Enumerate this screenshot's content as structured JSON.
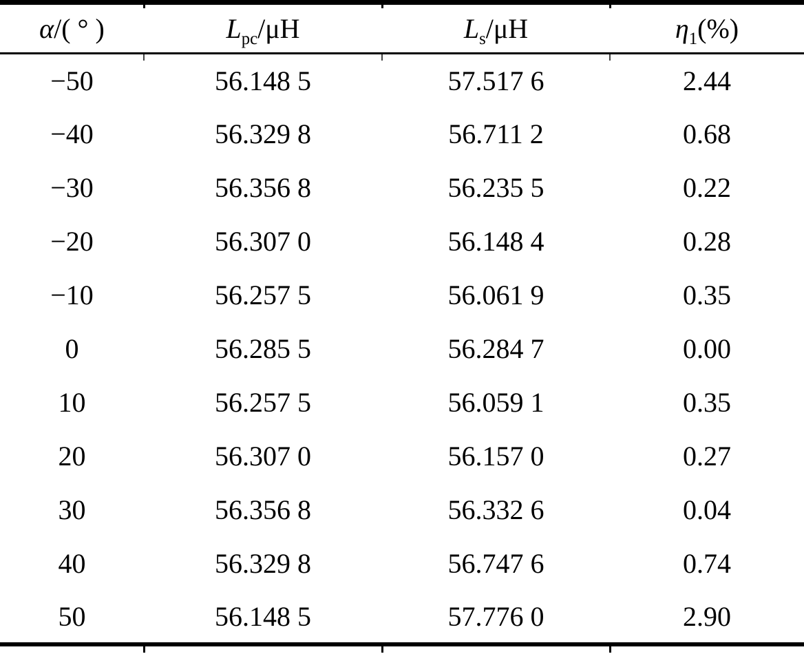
{
  "table": {
    "headers": [
      {
        "italic": "α",
        "sub": "",
        "rest": "/( ° )"
      },
      {
        "italic": "L",
        "sub": "pc",
        "rest": "/μH"
      },
      {
        "italic": "L",
        "sub": "s",
        "rest": "/μH"
      },
      {
        "italic": "η",
        "sub": "1",
        "rest": "(%)"
      }
    ],
    "rows": [
      [
        "−50",
        "56.148 5",
        "57.517 6",
        "2.44"
      ],
      [
        "−40",
        "56.329 8",
        "56.711 2",
        "0.68"
      ],
      [
        "−30",
        "56.356 8",
        "56.235 5",
        "0.22"
      ],
      [
        "−20",
        "56.307 0",
        "56.148 4",
        "0.28"
      ],
      [
        "−10",
        "56.257 5",
        "56.061 9",
        "0.35"
      ],
      [
        "0",
        "56.285 5",
        "56.284 7",
        "0.00"
      ],
      [
        "10",
        "56.257 5",
        "56.059 1",
        "0.35"
      ],
      [
        "20",
        "56.307 0",
        "56.157 0",
        "0.27"
      ],
      [
        "30",
        "56.356 8",
        "56.332 6",
        "0.04"
      ],
      [
        "40",
        "56.329 8",
        "56.747 6",
        "0.74"
      ],
      [
        "50",
        "56.148 5",
        "57.776 0",
        "2.90"
      ]
    ]
  },
  "chart_data": {
    "type": "table",
    "columns": [
      "α/(°)",
      "Lpc/μH",
      "Ls/μH",
      "η1(%)"
    ],
    "rows": [
      [
        -50,
        56.1485,
        57.5176,
        2.44
      ],
      [
        -40,
        56.3298,
        56.7112,
        0.68
      ],
      [
        -30,
        56.3568,
        56.2355,
        0.22
      ],
      [
        -20,
        56.307,
        56.1484,
        0.28
      ],
      [
        -10,
        56.2575,
        56.0619,
        0.35
      ],
      [
        0,
        56.2855,
        56.2847,
        0.0
      ],
      [
        10,
        56.2575,
        56.0591,
        0.35
      ],
      [
        20,
        56.307,
        56.157,
        0.27
      ],
      [
        30,
        56.3568,
        56.3326,
        0.04
      ],
      [
        40,
        56.3298,
        56.7476,
        0.74
      ],
      [
        50,
        56.1485,
        57.776,
        2.9
      ]
    ]
  },
  "colors": {
    "text": "#000000",
    "background": "#ffffff",
    "rule": "#000000"
  }
}
